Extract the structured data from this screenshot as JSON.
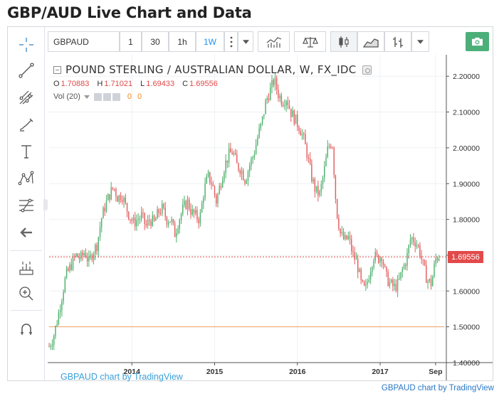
{
  "page": {
    "title": "GBP/AUD Live Chart and Data",
    "footer_credit": "GBPAUD chart by TradingView"
  },
  "toolbar": {
    "symbol": "GBPAUD",
    "intervals": [
      "1",
      "30",
      "1h",
      "1W"
    ],
    "active_interval": "1W",
    "more_icon": "vertical-dots-icon",
    "dropdown_icon": "caret-down-icon",
    "indicators_icon": "indicators-icon",
    "compare_icon": "scales-icon",
    "candles_icon": "candles-icon",
    "area_icon": "area-chart-icon",
    "bars_icon": "bars-icon",
    "camera_icon": "camera-icon"
  },
  "left_tools": [
    {
      "name": "crosshair-icon"
    },
    {
      "name": "trend-line-icon"
    },
    {
      "name": "pitchfork-icon"
    },
    {
      "name": "brush-icon"
    },
    {
      "name": "text-icon"
    },
    {
      "name": "pattern-icon"
    },
    {
      "name": "fib-retracement-icon"
    },
    {
      "name": "back-arrow-icon"
    },
    {
      "name": "measure-icon"
    },
    {
      "name": "zoom-in-icon"
    },
    {
      "name": "magnet-icon"
    }
  ],
  "legend": {
    "title": "POUND STERLING / AUSTRALIAN DOLLAR, W, FX_IDC",
    "ohlc": [
      {
        "label": "O",
        "value": "1.70883"
      },
      {
        "label": "H",
        "value": "1.71021"
      },
      {
        "label": "L",
        "value": "1.69433"
      },
      {
        "label": "C",
        "value": "1.69556"
      }
    ],
    "volume_label": "Vol (20)",
    "volume_values": [
      "0",
      "0"
    ]
  },
  "watermark": "GBPAUD chart by TradingView",
  "colors": {
    "up": "#4caf6a",
    "down": "#e25d5d",
    "last_price": "#e24a4a",
    "hline": "#f0a060",
    "accent": "#2196f3",
    "camera": "#4caf79"
  },
  "chart_data": {
    "type": "candlestick",
    "x_ticks": [
      "2014",
      "2015",
      "2016",
      "2017",
      "Sep"
    ],
    "y_ticks": [
      "2.20000",
      "2.10000",
      "2.00000",
      "1.90000",
      "1.80000",
      "1.70000",
      "1.60000",
      "1.50000",
      "1.40000"
    ],
    "ylim": [
      1.4,
      2.26
    ],
    "last_price": 1.69556,
    "last_price_label": "1.69556",
    "horizontal_line": 1.5,
    "x_range": [
      2013.0,
      2017.8
    ],
    "x_tick_values": [
      2014,
      2015,
      2016,
      2017,
      2017.67
    ],
    "series_close": [
      [
        2013.0,
        1.445
      ],
      [
        2013.05,
        1.47
      ],
      [
        2013.1,
        1.52
      ],
      [
        2013.15,
        1.58
      ],
      [
        2013.2,
        1.64
      ],
      [
        2013.26,
        1.67
      ],
      [
        2013.32,
        1.7
      ],
      [
        2013.38,
        1.69
      ],
      [
        2013.43,
        1.71
      ],
      [
        2013.48,
        1.68
      ],
      [
        2013.53,
        1.71
      ],
      [
        2013.58,
        1.73
      ],
      [
        2013.63,
        1.8
      ],
      [
        2013.68,
        1.84
      ],
      [
        2013.73,
        1.87
      ],
      [
        2013.78,
        1.89
      ],
      [
        2013.83,
        1.86
      ],
      [
        2013.88,
        1.87
      ],
      [
        2013.92,
        1.84
      ],
      [
        2013.97,
        1.81
      ],
      [
        2014.02,
        1.79
      ],
      [
        2014.07,
        1.8
      ],
      [
        2014.12,
        1.81
      ],
      [
        2014.17,
        1.78
      ],
      [
        2014.22,
        1.8
      ],
      [
        2014.27,
        1.79
      ],
      [
        2014.32,
        1.82
      ],
      [
        2014.37,
        1.83
      ],
      [
        2014.42,
        1.8
      ],
      [
        2014.47,
        1.8
      ],
      [
        2014.52,
        1.76
      ],
      [
        2014.57,
        1.8
      ],
      [
        2014.62,
        1.83
      ],
      [
        2014.67,
        1.85
      ],
      [
        2014.72,
        1.82
      ],
      [
        2014.77,
        1.81
      ],
      [
        2014.82,
        1.8
      ],
      [
        2014.87,
        1.88
      ],
      [
        2014.92,
        1.92
      ],
      [
        2014.97,
        1.9
      ],
      [
        2015.02,
        1.85
      ],
      [
        2015.07,
        1.9
      ],
      [
        2015.12,
        1.95
      ],
      [
        2015.17,
        1.98
      ],
      [
        2015.22,
        1.99
      ],
      [
        2015.27,
        1.95
      ],
      [
        2015.32,
        1.94
      ],
      [
        2015.37,
        1.91
      ],
      [
        2015.42,
        1.95
      ],
      [
        2015.47,
        1.98
      ],
      [
        2015.52,
        2.03
      ],
      [
        2015.57,
        2.07
      ],
      [
        2015.62,
        2.13
      ],
      [
        2015.67,
        2.16
      ],
      [
        2015.72,
        2.19
      ],
      [
        2015.77,
        2.15
      ],
      [
        2015.82,
        2.13
      ],
      [
        2015.87,
        2.14
      ],
      [
        2015.92,
        2.1
      ],
      [
        2015.97,
        2.08
      ],
      [
        2016.02,
        2.06
      ],
      [
        2016.07,
        2.03
      ],
      [
        2016.12,
        1.98
      ],
      [
        2016.17,
        1.92
      ],
      [
        2016.22,
        1.88
      ],
      [
        2016.27,
        1.87
      ],
      [
        2016.32,
        1.93
      ],
      [
        2016.37,
        2.0
      ],
      [
        2016.42,
        2.02
      ],
      [
        2016.47,
        1.83
      ],
      [
        2016.52,
        1.76
      ],
      [
        2016.57,
        1.74
      ],
      [
        2016.62,
        1.75
      ],
      [
        2016.67,
        1.7
      ],
      [
        2016.72,
        1.68
      ],
      [
        2016.77,
        1.62
      ],
      [
        2016.82,
        1.6
      ],
      [
        2016.87,
        1.65
      ],
      [
        2016.92,
        1.7
      ],
      [
        2016.97,
        1.69
      ],
      [
        2017.02,
        1.7
      ],
      [
        2017.07,
        1.64
      ],
      [
        2017.12,
        1.62
      ],
      [
        2017.17,
        1.61
      ],
      [
        2017.22,
        1.62
      ],
      [
        2017.27,
        1.66
      ],
      [
        2017.32,
        1.69
      ],
      [
        2017.37,
        1.75
      ],
      [
        2017.42,
        1.74
      ],
      [
        2017.47,
        1.72
      ],
      [
        2017.52,
        1.67
      ],
      [
        2017.57,
        1.63
      ],
      [
        2017.62,
        1.62
      ],
      [
        2017.67,
        1.69
      ],
      [
        2017.72,
        1.7
      ]
    ]
  }
}
